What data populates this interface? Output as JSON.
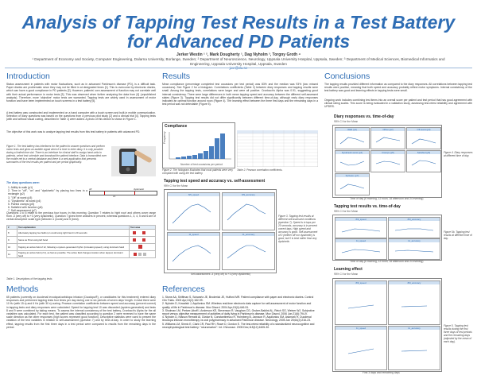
{
  "title_line1": "Analysis of Tapping Test Results in a Test Battery",
  "title_line2": "for Advanced PD Patients",
  "authors": "Jerker Westin ¹ ², Mark Dougherty ¹, Dag Nyholm ³, Torgny Groth ⁴",
  "affiliations": "¹ Department of Economy and Society, Computer Engineering, Dalarna University, Borlange, Sweden; ² Department of Neuroscience, Neurology, Uppsala University Hospital, Uppsala, Sweden; ³ Department of Medical Sciences, Biomedical Informatics and Engineering, Uppsala University Hospital, Uppsala, Sweden",
  "email": "jwe@du.se",
  "sections": {
    "introduction": "Introduction",
    "methods": "Methods",
    "results": "Results",
    "references": "References",
    "conclusions": "Conclusions"
  },
  "intro": {
    "p1": "Status assessment in patients with motor fluctuations, such as in advanced Parkinson's disease (PD), is a difficult task. Paper diaries are problematic since they may not be filled in at designated times [1]. This is overcome by electronic diaries, which can have a good compliance in PD patients [2]. However, patients' own assessment of function may not correlate well with their actual performance in motor tests [3]. This was observed when further analyzing the data from [4] (unpublished analysis). Therefore, more 'objective' motor tests are warranted. Tapping tests are widely used in assessment of motor function and have been implemented on touch screens in a test battery [5].",
    "p2": "A test battery was constructed and implemented on a hand computer with a touch screen and built-in mobile communication. Selection of diary questions was based on the questions from a previous pilot study [2] and a clinical trial [4]. Tapping tests (with and without visual cueing, described in Table 1) were added. A photo of this device is shown in Figure 1.",
    "p3": "The objective of this work was to analyze tapping test results from this test battery in patients with advanced PD.",
    "fig1_caption": "Figure 1. The test battery has interfaces for the patient to answer questions and perform motor tests and gives an audible signal when it is time to enter diary. It is only possible during a limited time slot. There is an interface for clinical staff to assign hand units to patients, select test schedule and download the patient interface. Data is transmitted over the mobile net to a central database and there is a web application that presents summaries of the test results per patient and per period graphically.",
    "diary_heading": "The diary questions were:",
    "diary_items": [
      "1.  Ability to walk (p1)",
      "2.  Time in \"off\", \"on\" and \"dyskinetic\" by placing two lines in a rectangle (p2)",
      "3.  \"Off\" at worst (p3)",
      "4.  \"Dyskinetic\" at worst (p4)",
      "5.  Painful cramps (p5)",
      "6.  Satisfied with function (p6)",
      "7.  Self-assessment (p7)"
    ],
    "scale_labels": [
      "off",
      "dyskinetic",
      "on"
    ],
    "p4": "Questions 1 to 6 relate to the previous four hours; in this morning, Question 7 relates to 'right now' and others cover range from -3 (very off) to +3 (very dyskinetic). Question 7 gives three answers in percent, whereas questions 1, 3, 4, 5 and 6 are of verbal descriptive scale type (between 1 (worst) and 5 (best).",
    "table1_headers": [
      "#",
      "Test explanation",
      "Test area"
    ],
    "table1_rows": [
      {
        "n": "8",
        "text": "Alternately tapping two fields (on could using right hand in 20 seconds"
      },
      {
        "n": "9",
        "text": "Same as 8 but using left hand"
      },
      {
        "n": "10",
        "text": "Tapping an active field of 12, following a system-generated rhythm (increasing speed), using dominant hand"
      },
      {
        "n": "11",
        "text": "Tapping an active field (of 4), as fast as possible. The active field changes location when tapped, dominant hand"
      }
    ],
    "table1_caption": "Table 1. Descriptions of the tapping tests"
  },
  "methods": {
    "p1": "65 patients (currently on duodenal levodopa/carbidopa infusion (Duodopa®), or candidates for this treatment) entered diary responses and performed tapping tests four times per day during one to six periods of seven days' length. In total there were 10 Hz (with 15 s) and 6 Hz (with 30 s) cueing. Pearson correlation coefficients between speed and accuracy (percent correct) in tapping tests and diary responses were calculated. Speed for tapping test 10 was discarded (system-generated) and tests 8 and 9 were combined by taking means. To assess the internal consistency of the test battery, Cronbach's Alpha for the all variables was calculated. For each test, the patient was classified according to question 2 were reversed to have the same scale direction as the other responses (high scores represent good function). Descriptive statistics were used to present the variation of the test variables in relation to self-assessment (question 7) and by time-of-day. In order to study the learning effect, tapping results from the first three days in a test period were compared to results from the remaining days in the period."
  },
  "results": {
    "p1": "Mean compliance (percentage completed test occasions per test period) was 83% and the median was 93% (two missed occasions). See Figure 2 for a histogram. Correlations coefficients (Table 2) between diary responses and tapping results were small. Among the tapping tests, correlations were larger and were all positive. Cronbach's Alpha was 0.91, suggesting good internal consistency. There were large differences in both mean tapping speed and accuracy between the different self-assessed states (Figure 3). Tapping test results did not differ significantly between different time-of-day, although early diary responses indicated an optimal function around noon (Figure 4). The learning effect between the three first days and the remaining days in a test period was not detectable (Figure 5).",
    "fig2_title": "Compliance",
    "fig2_xlabel": "Number of test occasions per period",
    "fig2_ylabel": "Frequency",
    "fig2_caption": "Figure 2. The histogram illustrates that most patients were very compliant with using the test battery.",
    "table2_caption": "Table 2. Pearson correlation coefficients.",
    "fig3_title": "Tapping test speed and accuracy vs. self-assessment",
    "fig3_sub": "95% CI for the Mean",
    "fig3_panels": [
      "8/9_speed",
      "8/9_accuracy",
      "11_speed",
      "11_accuracy"
    ],
    "fig3_xlabel": "Self-assessment -3 (very off) to +3 (very dyskinetic)",
    "fig3_caption": "Figure 3. Tapping test results at different self-assessed conditions (question 7). Speed is in taps per 20 seconds, accuracy is in percent correct taps. High speed and accuracy is good. Self-assessment of 0 (neither off nor dyskinetic) is good, but 0 is best rather than any dyskinetic."
  },
  "references": [
    "1. Stone AA, Shiffman S, Schwartz JE, Broderick JE, Hufford MR. Patient compliance with paper and electronic diaries. Control Clin Trials. 2003 Apr;24(2):182-99.",
    "2. Nyholm D, Kowalski J, Aquilonius SM. Wireless real-time electronic data capture for self-assessment of motor function and quality of life in Parkinson's disease. Mov Disord. 2004 Apr;19(4):446-51.",
    "3. Shulman LM, Pretzer-Aboff I, Anderson KE, Stevenson R, Vaughan CG, Gruber-Baldini AL, Reich SG, Weiner WJ. Subjective report versus objective measurement of activities of daily living in Parkinson's disease. Mov Disord. 2006 Jun;21(6):794-9.",
    "4. Nyholm D, Nilsson Remahl AI, Dizdar N, Constantinescu R, Holmberg B, Jansson R, Aquilonius SM, Askmark H. Duodenal levodopa infusion monotherapy vs oral polypharmacy in advanced Parkinson disease. Neurology. 2005 Jan 25;64(2):216-23.",
    "5. Williams LM, Sirmic E, Clark CR, Paul RH, Rowe D, Gordon E. The test-retest reliability of a standardized neurocognitive and neurophysiological test battery: \"neuromarker\". Int J Neurosci. 2005 Dec;115(12):1605-30."
  ],
  "conclusions": {
    "p1": "The tapping results provided different information as compared to the diary responses. All correlations between tapping test results were positive, meaning that both speed and accuracy probably reflect motor symptoms. Internal consistency of the test battery was good and learning effects in tapping tests were small.",
    "p2": "Ongoing work includes combining test items into an overall score per patient and test period that has good agreement with clinical rating scales. This score is being evaluated in a validation study, assessing test-retest reliability and agreement with UPDRS.",
    "fig4_title": "Diary responses vs. time-of-day",
    "fig4_sub": "95% CI for the Mean",
    "fig4_panels": [
      "Walk (p1)",
      "Off/on (p2)",
      "Off worst (p3)",
      "Dyskinetic worst (p4)",
      "Cramps (p5)",
      "Satisfied (p6)",
      "Self-ass. (p7)"
    ],
    "fig4_caption": "Figure 4. Diary responses at different time of day.",
    "fig4_xlabel": "Time of day (6 morning, 12 noon, 18 afternoon and 24 evening)",
    "fig5_title": "Tapping test results vs. time-of-day",
    "fig5_sub": "95% CI for the Mean",
    "fig5_panels": [
      "8/9_speed",
      "8/9_accuracy",
      "11_speed",
      "11_accuracy"
    ],
    "fig5_caption": "Figure 5b. Tapping test results at different time of day.",
    "fig5_xlabel": "Time of day (6 morning, 12 noon, 18 afternoon and 24 evening)",
    "fig6_title": "Learning effect",
    "fig6_sub": "95% CI for the Mean",
    "fig6_panels": [
      "8/9_speed",
      "8/9_accuracy",
      "11_speed",
      "11_accuracy"
    ],
    "fig6_caption": "Figure 5. Tapping test results during the first three days of test periods and the remaining days (adjusted by the mean of each day).",
    "fig6_xlabel": "First 3 days and remaining days",
    "fig6_groups": [
      "first_three",
      "remaining"
    ]
  }
}
